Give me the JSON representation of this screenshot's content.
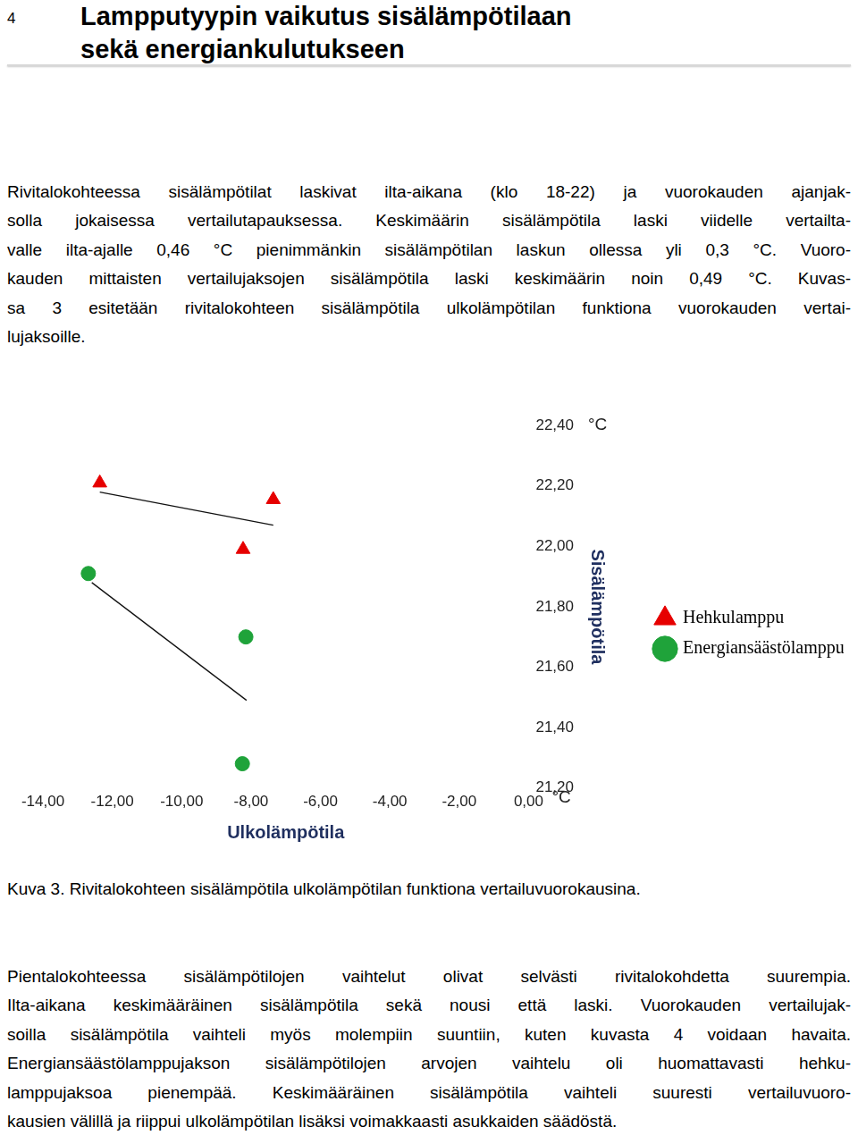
{
  "page_number": "4",
  "header": {
    "title_lines": [
      "Lampputyypin vaikutus sisälämpötilaan",
      "sekä energiankulutukseen"
    ]
  },
  "paragraphs_before": [
    [
      "Rivitalokohteessa sisälämpötilat laskivat ilta-aikana (klo 18-22) ja vuorokauden ajanjak-",
      "solla jokaisessa vertailutapauksessa. Keskimäärin sisälämpötila laski viidelle vertailta-",
      "valle ilta-ajalle 0,46 °C pienimmänkin sisälämpötilan laskun ollessa yli 0,3 °C. Vuoro-",
      "kauden mittaisten vertailujaksojen sisälämpötila laski keskimäärin noin 0,49 °C. Kuvas-",
      "sa 3 esitetään rivitalokohteen sisälämpötila ulkolämpötilan funktiona vuorokauden vertai-",
      "lujaksoille."
    ]
  ],
  "chart_data": {
    "type": "scatter",
    "x_label": "Ulkolämpötila",
    "y_label": "Sisälämpötila",
    "x_unit": "°C",
    "y_unit": "°C",
    "xlim": [
      -14,
      0
    ],
    "xticks": [
      {
        "value": -14,
        "label": "-14,00"
      },
      {
        "value": -12,
        "label": "-12,00"
      },
      {
        "value": -10,
        "label": "-10,00"
      },
      {
        "value": -8,
        "label": "-8,00"
      },
      {
        "value": -6,
        "label": "-6,00"
      },
      {
        "value": -4,
        "label": "-4,00"
      },
      {
        "value": -2,
        "label": "-2,00"
      },
      {
        "value": 0,
        "label": "0,00"
      }
    ],
    "ylim": [
      21.2,
      22.4
    ],
    "yticks": [
      {
        "value": 21.2,
        "label": "21,20"
      },
      {
        "value": 21.4,
        "label": "21,40"
      },
      {
        "value": 21.6,
        "label": "21,60"
      },
      {
        "value": 21.8,
        "label": "21,80"
      },
      {
        "value": 22.0,
        "label": "22,00"
      },
      {
        "value": 22.2,
        "label": "22,20"
      },
      {
        "value": 22.4,
        "label": "22,40"
      }
    ],
    "grid": false,
    "legend": "right",
    "series": [
      {
        "name": "Hehkulamppu",
        "color": "#e60000",
        "marker": "triangle",
        "x": [
          -12.36,
          -7.36,
          -8.23
        ],
        "values": [
          22.21,
          22.155,
          21.99
        ],
        "trend_line": {
          "x": [
            -12.36,
            -7.36
          ],
          "values": [
            22.18,
            22.07
          ]
        }
      },
      {
        "name": "Energiansäästölamppu",
        "color": "#1fa33a",
        "marker": "circle",
        "x": [
          -12.69,
          -8.15,
          -8.25
        ],
        "values": [
          21.91,
          21.7,
          21.28
        ],
        "trend_line": {
          "x": [
            -12.59,
            -8.13
          ],
          "values": [
            21.88,
            21.49
          ]
        }
      }
    ]
  },
  "caption": "Kuva 3. Rivitalokohteen sisälämpötila ulkolämpötilan funktiona vertailuvuorokausina.",
  "paragraphs_after": [
    [
      "Pientalokohteessa sisälämpötilojen vaihtelut olivat selvästi rivitalokohdetta suurempia.",
      "Ilta-aikana keskimääräinen sisälämpötila sekä nousi että laski. Vuorokauden vertailujak-",
      "soilla sisälämpötila vaihteli myös molempiin suuntiin, kuten kuvasta 4 voidaan havaita.",
      "Energiansäästölamppujakson sisälämpötilojen arvojen vaihtelu oli huomattavasti hehku-",
      "lamppujaksoa pienempää. Keskimääräinen sisälämpötila vaihteli suuresti vertailuvuoro-",
      "kausien välillä ja riippui ulkolämpötilan lisäksi voimakkaasti asukkaiden säädöstä."
    ]
  ]
}
